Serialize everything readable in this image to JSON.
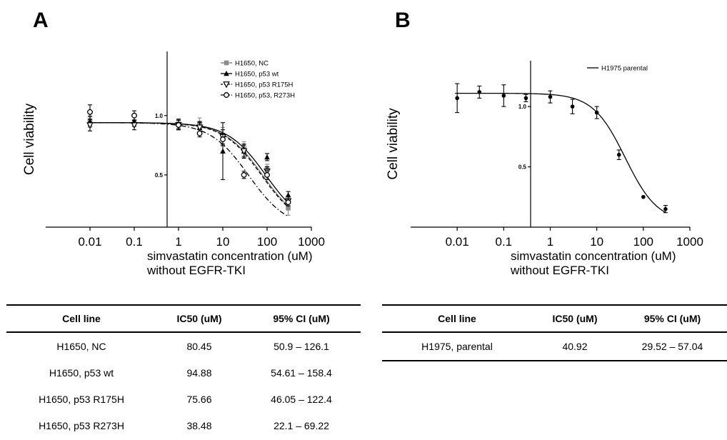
{
  "panels": [
    {
      "letter": "A",
      "chart_data": {
        "type": "scatter",
        "title": "",
        "xlabel": "simvastatin concentration (uM)",
        "xlabel_line2": "without EGFR-TKI",
        "ylabel": "Cell viability",
        "x_scale": "log",
        "xlim": [
          0.001,
          1000
        ],
        "ylim": [
          0.06,
          1.54
        ],
        "x_ticks": [
          0.01,
          0.1,
          1,
          10,
          100,
          1000
        ],
        "x_tick_labels": [
          "0.01",
          "0.1",
          "1",
          "10",
          "100",
          "1000"
        ],
        "y_ticks": [
          0.5,
          1.0
        ],
        "y_tick_labels": [
          "0.5",
          "1.0"
        ],
        "legend_position": "top-right",
        "grid": false,
        "series": [
          {
            "name": "H1650, NC",
            "color": "#8c8c8c",
            "marker": "square",
            "line": "solid",
            "x": [
              0.01,
              0.1,
              1,
              3,
              10,
              30,
              100,
              300
            ],
            "y": [
              0.95,
              0.95,
              0.93,
              0.93,
              0.82,
              0.72,
              0.55,
              0.22
            ],
            "err": [
              0.05,
              0.04,
              0.04,
              0.05,
              0.08,
              0.06,
              0.04,
              0.06
            ],
            "ic50": 80.45,
            "top": 0.94,
            "bottom": 0.05,
            "hill": 1.0
          },
          {
            "name": "H1650, p53 wt",
            "color": "#000000",
            "marker": "triangle-up",
            "line": "solid",
            "x": [
              0.01,
              0.1,
              1,
              3,
              10,
              30,
              100,
              300
            ],
            "y": [
              0.95,
              0.95,
              0.93,
              0.9,
              0.7,
              0.7,
              0.65,
              0.33
            ],
            "err": [
              0.04,
              0.04,
              0.04,
              0.05,
              0.24,
              0.06,
              0.03,
              0.03
            ],
            "ic50": 94.88,
            "top": 0.94,
            "bottom": 0.05,
            "hill": 1.0
          },
          {
            "name": "H1650, p53 R175H",
            "color": "#000000",
            "marker": "triangle-down",
            "line": "dashed",
            "x": [
              0.01,
              0.1,
              1,
              3,
              10,
              30,
              100,
              300
            ],
            "y": [
              0.92,
              0.92,
              0.92,
              0.9,
              0.82,
              0.7,
              0.53,
              0.28
            ],
            "err": [
              0.05,
              0.04,
              0.04,
              0.04,
              0.06,
              0.05,
              0.04,
              0.04
            ],
            "ic50": 75.66,
            "top": 0.94,
            "bottom": 0.05,
            "hill": 1.0
          },
          {
            "name": "H1650, p53, R273H",
            "color": "#000000",
            "marker": "circle-open",
            "line": "dashdot",
            "x": [
              0.01,
              0.1,
              1,
              3,
              10,
              30,
              100,
              300
            ],
            "y": [
              1.03,
              1.0,
              0.92,
              0.85,
              0.8,
              0.5,
              0.5,
              0.27
            ],
            "err": [
              0.06,
              0.04,
              0.04,
              0.03,
              0.05,
              0.03,
              0.04,
              0.03
            ],
            "ic50": 38.48,
            "top": 0.94,
            "bottom": 0.05,
            "hill": 1.0
          }
        ]
      },
      "table": {
        "headers": [
          "Cell line",
          "IC50 (uM)",
          "95% CI (uM)"
        ],
        "rows": [
          [
            "H1650, NC",
            "80.45",
            "50.9 – 126.1"
          ],
          [
            "H1650, p53 wt",
            "94.88",
            "54.61 – 158.4"
          ],
          [
            "H1650, p53 R175H",
            "75.66",
            "46.05 – 122.4"
          ],
          [
            "H1650, p53 R273H",
            "38.48",
            "22.1 – 69.22"
          ]
        ]
      }
    },
    {
      "letter": "B",
      "chart_data": {
        "type": "scatter",
        "title": "",
        "xlabel": "simvastatin concentration (uM)",
        "xlabel_line2": "without EGFR-TKI",
        "ylabel": "Cell viability",
        "x_scale": "log",
        "xlim": [
          0.001,
          1000
        ],
        "ylim": [
          0.0,
          1.38
        ],
        "x_ticks": [
          0.01,
          0.1,
          1,
          10,
          100,
          1000
        ],
        "x_tick_labels": [
          "0.01",
          "0.1",
          "1",
          "10",
          "100",
          "1000"
        ],
        "y_ticks": [
          0.5,
          1.0
        ],
        "y_tick_labels": [
          "0.5",
          "1.0"
        ],
        "legend_position": "top-right",
        "grid": false,
        "series": [
          {
            "name": "H1975 parental",
            "color": "#000000",
            "marker": "circle-filled",
            "line": "solid",
            "x": [
              0.01,
              0.03,
              0.1,
              0.3,
              1,
              3,
              10,
              30,
              100,
              300
            ],
            "y": [
              1.07,
              1.12,
              1.09,
              1.07,
              1.08,
              1.0,
              0.95,
              0.6,
              0.25,
              0.15
            ],
            "err": [
              0.12,
              0.05,
              0.09,
              0.03,
              0.05,
              0.06,
              0.05,
              0.04,
              0.0,
              0.03
            ],
            "ic50": 40.92,
            "top": 1.11,
            "bottom": 0.04,
            "hill": 1.25
          }
        ]
      },
      "table": {
        "headers": [
          "Cell line",
          "IC50 (uM)",
          "95% CI (uM)"
        ],
        "rows": [
          [
            "H1975, parental",
            "40.92",
            "29.52 – 57.04"
          ]
        ]
      }
    }
  ]
}
